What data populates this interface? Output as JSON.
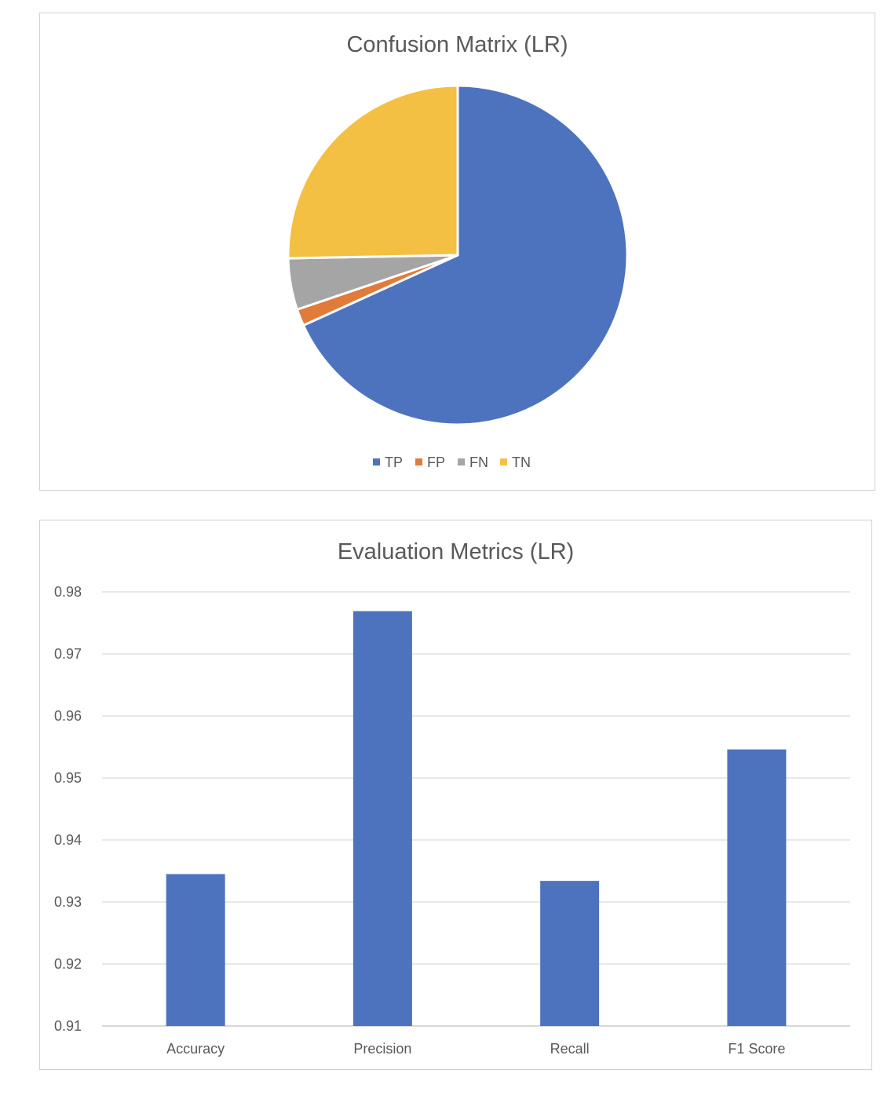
{
  "chart_data": [
    {
      "type": "pie",
      "title": "Confusion Matrix (LR)",
      "categories": [
        "TP",
        "FP",
        "FN",
        "TN"
      ],
      "values": [
        68.2,
        1.6,
        4.9,
        25.3
      ],
      "colors": [
        "#4e73be",
        "#e07b39",
        "#a5a5a5",
        "#f4c043"
      ],
      "legend": "bottom"
    },
    {
      "type": "bar",
      "title": "Evaluation Metrics (LR)",
      "categories": [
        "Accuracy",
        "Precision",
        "Recall",
        "F1 Score"
      ],
      "values": [
        0.9345,
        0.9769,
        0.9334,
        0.9546
      ],
      "ylim": [
        0.91,
        0.98
      ],
      "yticks": [
        "0.91",
        "0.92",
        "0.93",
        "0.94",
        "0.95",
        "0.96",
        "0.97",
        "0.98"
      ],
      "grid": true,
      "color": "#4e73be"
    }
  ]
}
